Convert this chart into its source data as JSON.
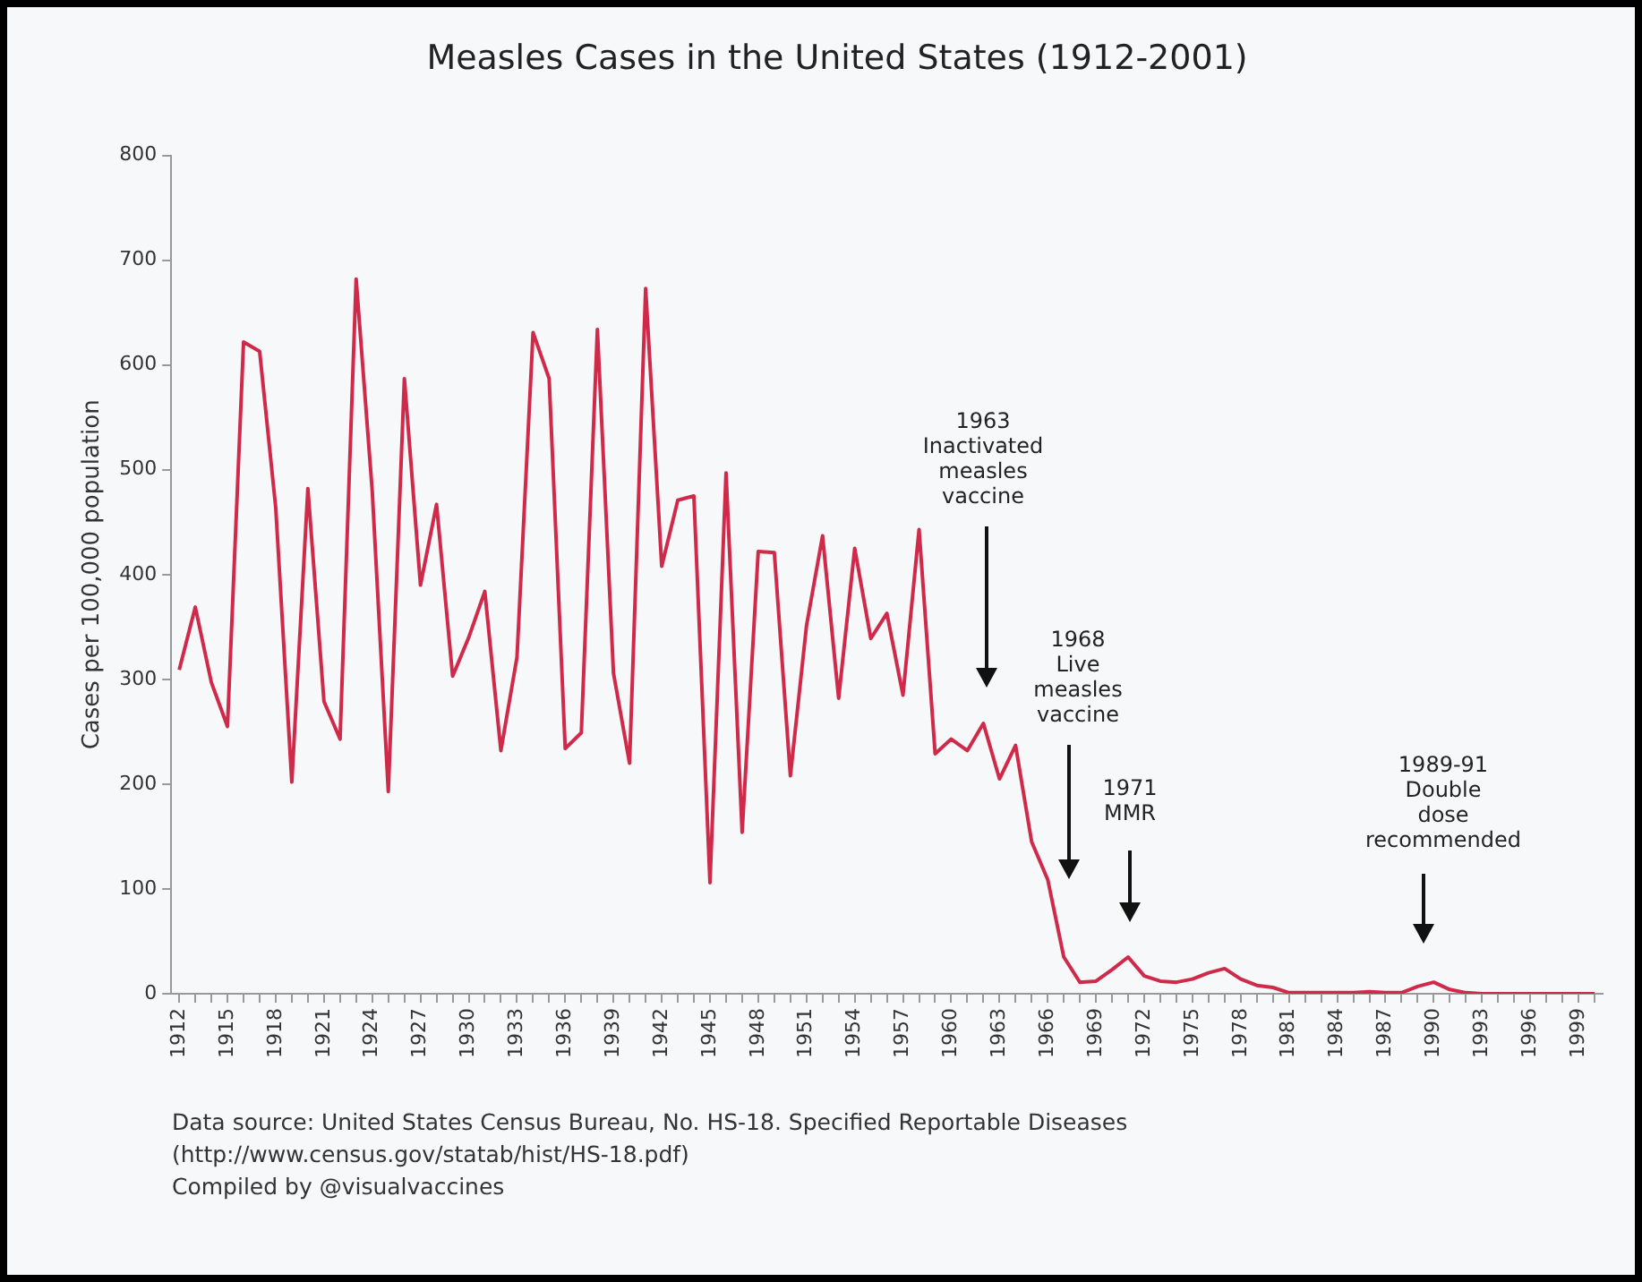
{
  "chart_data": {
    "type": "line",
    "title": "Measles Cases in the United States (1912-2001)",
    "ylabel": "Cases per 100,000 population",
    "x": [
      1912,
      1913,
      1914,
      1915,
      1916,
      1917,
      1918,
      1919,
      1920,
      1921,
      1922,
      1923,
      1924,
      1925,
      1926,
      1927,
      1928,
      1929,
      1930,
      1931,
      1932,
      1933,
      1934,
      1935,
      1936,
      1937,
      1938,
      1939,
      1940,
      1941,
      1942,
      1943,
      1944,
      1945,
      1946,
      1947,
      1948,
      1949,
      1950,
      1951,
      1952,
      1953,
      1954,
      1955,
      1956,
      1957,
      1958,
      1959,
      1960,
      1961,
      1962,
      1963,
      1964,
      1965,
      1966,
      1967,
      1968,
      1969,
      1970,
      1971,
      1972,
      1973,
      1974,
      1975,
      1976,
      1977,
      1978,
      1979,
      1980,
      1981,
      1982,
      1983,
      1984,
      1985,
      1986,
      1987,
      1988,
      1989,
      1990,
      1991,
      1992,
      1993,
      1994,
      1995,
      1996,
      1997,
      1998,
      1999,
      2000
    ],
    "series": [
      {
        "color": "#d02a4a",
        "values": [
          309,
          369,
          297,
          255,
          622,
          613,
          464,
          202,
          482,
          279,
          243,
          682,
          480,
          193,
          587,
          390,
          467,
          303,
          340,
          384,
          232,
          321,
          631,
          587,
          234,
          249,
          634,
          306,
          220,
          673,
          408,
          471,
          475,
          106,
          497,
          154,
          422,
          421,
          208,
          351,
          437,
          282,
          425,
          339,
          363,
          285,
          443,
          229,
          243,
          232,
          258,
          205,
          237,
          145,
          109,
          35,
          11,
          12,
          23,
          35,
          17,
          12,
          11,
          14,
          20,
          24,
          14,
          8,
          6,
          1,
          1,
          1,
          1,
          1,
          2,
          1,
          1,
          7,
          11,
          4,
          1,
          0,
          0,
          0,
          0,
          0,
          0,
          0,
          0
        ]
      }
    ],
    "xlim": [
      1911.5,
      2000.5
    ],
    "xticks": [
      1912,
      {
        "value": 1913,
        "label": null
      },
      {
        "value": 1914,
        "label": null
      },
      1915,
      {
        "value": 1916,
        "label": null
      },
      {
        "value": 1917,
        "label": null
      },
      1918,
      {
        "value": 1919,
        "label": null
      },
      {
        "value": 1920,
        "label": null
      },
      1921,
      {
        "value": 1922,
        "label": null
      },
      {
        "value": 1923,
        "label": null
      },
      1924,
      {
        "value": 1925,
        "label": null
      },
      {
        "value": 1926,
        "label": null
      },
      1927,
      {
        "value": 1928,
        "label": null
      },
      {
        "value": 1929,
        "label": null
      },
      1930,
      {
        "value": 1931,
        "label": null
      },
      {
        "value": 1932,
        "label": null
      },
      1933,
      {
        "value": 1934,
        "label": null
      },
      {
        "value": 1935,
        "label": null
      },
      1936,
      {
        "value": 1937,
        "label": null
      },
      {
        "value": 1938,
        "label": null
      },
      1939,
      {
        "value": 1940,
        "label": null
      },
      {
        "value": 1941,
        "label": null
      },
      1942,
      {
        "value": 1943,
        "label": null
      },
      {
        "value": 1944,
        "label": null
      },
      1945,
      {
        "value": 1946,
        "label": null
      },
      {
        "value": 1947,
        "label": null
      },
      1948,
      {
        "value": 1949,
        "label": null
      },
      {
        "value": 1950,
        "label": null
      },
      1951,
      {
        "value": 1952,
        "label": null
      },
      {
        "value": 1953,
        "label": null
      },
      1954,
      {
        "value": 1955,
        "label": null
      },
      {
        "value": 1956,
        "label": null
      },
      1957,
      {
        "value": 1958,
        "label": null
      },
      {
        "value": 1959,
        "label": null
      },
      1960,
      {
        "value": 1961,
        "label": null
      },
      {
        "value": 1962,
        "label": null
      },
      1963,
      {
        "value": 1964,
        "label": null
      },
      {
        "value": 1965,
        "label": null
      },
      1966,
      {
        "value": 1967,
        "label": null
      },
      {
        "value": 1968,
        "label": null
      },
      1969,
      {
        "value": 1970,
        "label": null
      },
      {
        "value": 1971,
        "label": null
      },
      1972,
      {
        "value": 1973,
        "label": null
      },
      {
        "value": 1974,
        "label": null
      },
      1975,
      {
        "value": 1976,
        "label": null
      },
      {
        "value": 1977,
        "label": null
      },
      1978,
      {
        "value": 1979,
        "label": null
      },
      {
        "value": 1980,
        "label": null
      },
      1981,
      {
        "value": 1982,
        "label": null
      },
      {
        "value": 1983,
        "label": null
      },
      1984,
      {
        "value": 1985,
        "label": null
      },
      {
        "value": 1986,
        "label": null
      },
      1987,
      {
        "value": 1988,
        "label": null
      },
      {
        "value": 1989,
        "label": null
      },
      1990,
      {
        "value": 1991,
        "label": null
      },
      {
        "value": 1992,
        "label": null
      },
      1993,
      {
        "value": 1994,
        "label": null
      },
      {
        "value": 1995,
        "label": null
      },
      1996,
      {
        "value": 1997,
        "label": null
      },
      {
        "value": 1998,
        "label": null
      },
      1999,
      {
        "value": 2000,
        "label": null
      }
    ],
    "ylim": [
      0,
      800
    ],
    "yticks": [
      0,
      100,
      200,
      300,
      400,
      500,
      600,
      700,
      800
    ],
    "grid": false,
    "legend": false,
    "marker": "none",
    "line_style": "solid",
    "annotations": [
      "1963\nInactivated\nmeasles\nvaccine",
      "1968\nLive\nmeasles\nvaccine",
      "1971\nMMR",
      "1989-91\nDouble\ndose\nrecommended",
      "Data source: United States Census Bureau, No. HS-18. Specified Reportable Diseases",
      "(http://www.census.gov/statab/hist/HS-18.pdf)",
      "Compiled by @visualvaccines"
    ]
  }
}
